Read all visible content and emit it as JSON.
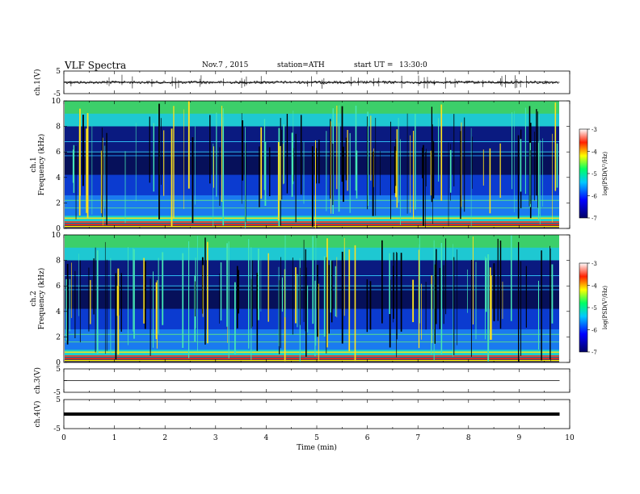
{
  "header": {
    "title": "VLF Spectra",
    "date": "Nov.7 , 2015",
    "station": "station=ATH",
    "start": "start UT =",
    "start_time": "13:30:0"
  },
  "chart_data": [
    {
      "type": "line",
      "panel": "ch1-waveform",
      "ylabel": "ch.1(V)",
      "ylim": [
        -5,
        5
      ],
      "yticks": [
        "5",
        "-5"
      ],
      "x": [
        0,
        0.5,
        1,
        1.5,
        2,
        2.5,
        3,
        3.5,
        4,
        4.5,
        5,
        5.5,
        6,
        6.5,
        7,
        7.5,
        8,
        8.5,
        9,
        9.5,
        9.8
      ],
      "values": [
        0.1,
        -0.1,
        0.1,
        0.0,
        -0.1,
        0.1,
        0.0,
        -0.1,
        0.1,
        0.0,
        0.1,
        -0.1,
        0.0,
        0.1,
        -0.1,
        0.0,
        0.1,
        -0.1,
        0.0,
        0.1,
        0.0
      ]
    },
    {
      "type": "heatmap",
      "panel": "ch1-spectrogram",
      "ylabel": "ch.1 Frequency (kHz)",
      "ylabel_ch": "ch.1",
      "ylabel_freq": "Frequency (kHz)",
      "ylim": [
        0,
        10
      ],
      "yticks": [
        "0",
        "2",
        "4",
        "6",
        "8",
        "10"
      ],
      "colorbar": {
        "label": "log(PSD(V²/Hz)",
        "range": [
          -7,
          -3
        ],
        "ticks": [
          "-3",
          "-4",
          "-5",
          "-6",
          "-7"
        ]
      }
    },
    {
      "type": "heatmap",
      "panel": "ch2-spectrogram",
      "ylabel": "ch.2 Frequency (kHz)",
      "ylabel_ch": "ch.2",
      "ylabel_freq": "Frequency (kHz)",
      "ylim": [
        0,
        10
      ],
      "yticks": [
        "0",
        "2",
        "4",
        "6",
        "8",
        "10"
      ],
      "colorbar": {
        "label": "log(PSD(V²/Hz)",
        "range": [
          -7,
          -3
        ],
        "ticks": [
          "-3",
          "-4",
          "-5",
          "-6",
          "-7"
        ]
      }
    },
    {
      "type": "line",
      "panel": "ch3-waveform",
      "ylabel": "ch.3(V)",
      "ylim": [
        -5,
        5
      ],
      "yticks": [
        "5",
        "-5"
      ],
      "x": [
        0,
        9.8
      ],
      "values": [
        0.0,
        0.0
      ]
    },
    {
      "type": "line",
      "panel": "ch4-waveform",
      "ylabel": "ch.4(V)",
      "ylim": [
        -5,
        5
      ],
      "yticks": [
        "5",
        "-5"
      ],
      "x": [
        0,
        9.8
      ],
      "values": [
        0.0,
        0.0
      ]
    },
    {
      "type": "axis",
      "xlabel": "Time (min)",
      "xlim": [
        0,
        10
      ],
      "xticks": [
        "0",
        "1",
        "2",
        "3",
        "4",
        "5",
        "6",
        "7",
        "8",
        "9",
        "10"
      ]
    }
  ]
}
